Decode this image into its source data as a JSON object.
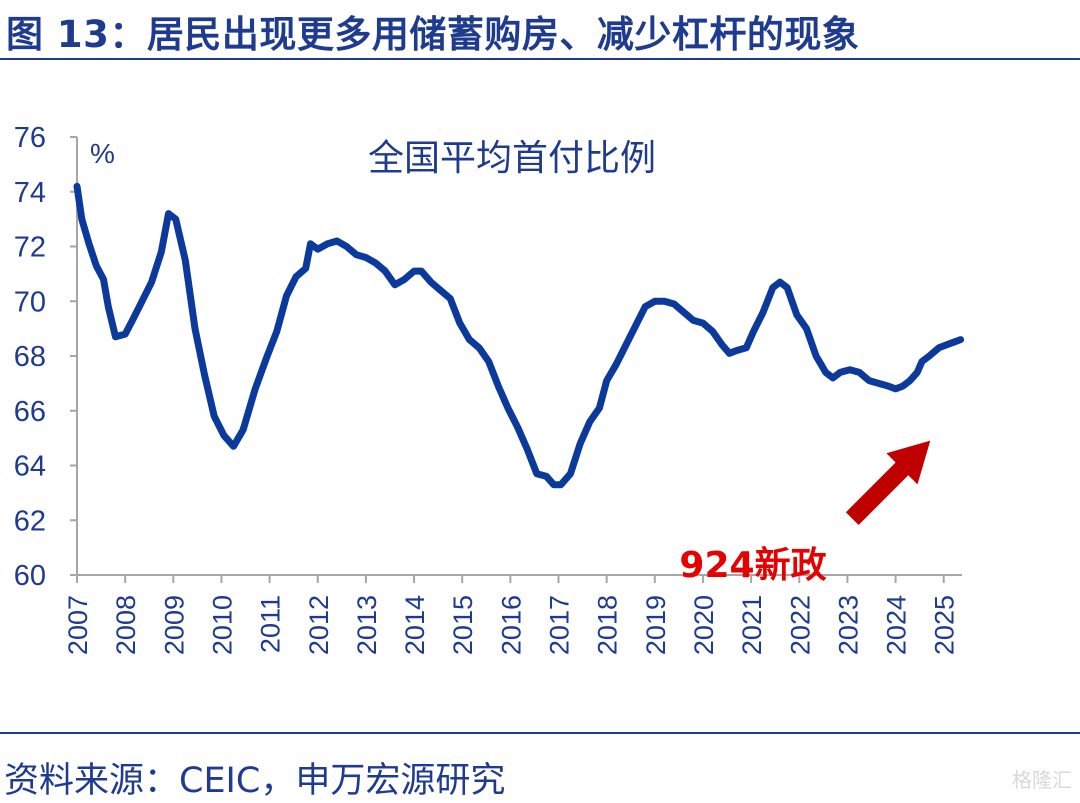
{
  "page": {
    "title": "图 13：居民出现更多用储蓄购房、减少杠杆的现象",
    "source": "资料来源：CEIC，申万宏源研究",
    "watermark": "格隆汇"
  },
  "colors": {
    "brand": "#1f3b8f",
    "line": "#0b3a9c",
    "annotation": "#e60000",
    "arrow": "#c00000"
  },
  "chart_data": {
    "type": "line",
    "title": "",
    "ylabel": "%",
    "xlabel": "",
    "ylim": [
      60,
      76
    ],
    "yticks": [
      60,
      62,
      64,
      66,
      68,
      70,
      72,
      74,
      76
    ],
    "xlim": [
      2007,
      2025.38
    ],
    "xticks": [
      "2007",
      "2008",
      "2009",
      "2010",
      "2011",
      "2012",
      "2013",
      "2014",
      "2015",
      "2016",
      "2017",
      "2018",
      "2019",
      "2020",
      "2021",
      "2022",
      "2023",
      "2024",
      "2025"
    ],
    "grid": false,
    "series": [
      {
        "name": "全国平均首付比例",
        "points": [
          [
            2007.0,
            74.2
          ],
          [
            2007.1,
            73.0
          ],
          [
            2007.25,
            72.1
          ],
          [
            2007.4,
            71.3
          ],
          [
            2007.55,
            70.8
          ],
          [
            2007.65,
            69.8
          ],
          [
            2007.8,
            68.7
          ],
          [
            2008.0,
            68.8
          ],
          [
            2008.15,
            69.3
          ],
          [
            2008.35,
            70.0
          ],
          [
            2008.55,
            70.7
          ],
          [
            2008.75,
            71.8
          ],
          [
            2008.9,
            73.2
          ],
          [
            2009.05,
            73.0
          ],
          [
            2009.25,
            71.5
          ],
          [
            2009.45,
            69.0
          ],
          [
            2009.65,
            67.3
          ],
          [
            2009.85,
            65.8
          ],
          [
            2010.05,
            65.1
          ],
          [
            2010.25,
            64.7
          ],
          [
            2010.45,
            65.3
          ],
          [
            2010.7,
            66.8
          ],
          [
            2010.95,
            68.0
          ],
          [
            2011.15,
            68.9
          ],
          [
            2011.35,
            70.2
          ],
          [
            2011.55,
            70.9
          ],
          [
            2011.75,
            71.2
          ],
          [
            2011.85,
            72.1
          ],
          [
            2012.0,
            71.9
          ],
          [
            2012.2,
            72.1
          ],
          [
            2012.4,
            72.2
          ],
          [
            2012.6,
            72.0
          ],
          [
            2012.8,
            71.7
          ],
          [
            2013.0,
            71.6
          ],
          [
            2013.2,
            71.4
          ],
          [
            2013.4,
            71.1
          ],
          [
            2013.6,
            70.6
          ],
          [
            2013.8,
            70.8
          ],
          [
            2014.0,
            71.1
          ],
          [
            2014.15,
            71.1
          ],
          [
            2014.35,
            70.7
          ],
          [
            2014.55,
            70.4
          ],
          [
            2014.75,
            70.1
          ],
          [
            2014.95,
            69.2
          ],
          [
            2015.15,
            68.6
          ],
          [
            2015.35,
            68.3
          ],
          [
            2015.55,
            67.8
          ],
          [
            2015.75,
            66.9
          ],
          [
            2015.95,
            66.1
          ],
          [
            2016.15,
            65.4
          ],
          [
            2016.35,
            64.6
          ],
          [
            2016.55,
            63.7
          ],
          [
            2016.75,
            63.6
          ],
          [
            2016.9,
            63.3
          ],
          [
            2017.05,
            63.3
          ],
          [
            2017.25,
            63.7
          ],
          [
            2017.45,
            64.8
          ],
          [
            2017.65,
            65.6
          ],
          [
            2017.85,
            66.1
          ],
          [
            2018.0,
            67.1
          ],
          [
            2018.2,
            67.7
          ],
          [
            2018.4,
            68.4
          ],
          [
            2018.6,
            69.1
          ],
          [
            2018.8,
            69.8
          ],
          [
            2019.0,
            70.0
          ],
          [
            2019.2,
            70.0
          ],
          [
            2019.4,
            69.9
          ],
          [
            2019.6,
            69.6
          ],
          [
            2019.8,
            69.3
          ],
          [
            2020.0,
            69.2
          ],
          [
            2020.2,
            68.9
          ],
          [
            2020.4,
            68.4
          ],
          [
            2020.55,
            68.1
          ],
          [
            2020.7,
            68.2
          ],
          [
            2020.9,
            68.3
          ],
          [
            2021.05,
            68.9
          ],
          [
            2021.25,
            69.6
          ],
          [
            2021.45,
            70.5
          ],
          [
            2021.6,
            70.7
          ],
          [
            2021.75,
            70.5
          ],
          [
            2021.95,
            69.5
          ],
          [
            2022.15,
            69.0
          ],
          [
            2022.35,
            68.0
          ],
          [
            2022.55,
            67.4
          ],
          [
            2022.7,
            67.2
          ],
          [
            2022.85,
            67.4
          ],
          [
            2023.05,
            67.5
          ],
          [
            2023.25,
            67.4
          ],
          [
            2023.45,
            67.1
          ],
          [
            2023.65,
            67.0
          ],
          [
            2023.85,
            66.9
          ],
          [
            2024.0,
            66.8
          ],
          [
            2024.15,
            66.9
          ],
          [
            2024.3,
            67.1
          ],
          [
            2024.45,
            67.4
          ],
          [
            2024.55,
            67.8
          ],
          [
            2024.7,
            68.0
          ],
          [
            2024.9,
            68.3
          ],
          [
            2025.05,
            68.4
          ],
          [
            2025.2,
            68.5
          ],
          [
            2025.35,
            68.6
          ]
        ]
      }
    ],
    "annotations": [
      {
        "text": "924新政",
        "points_to_x": 2024.7
      }
    ]
  }
}
